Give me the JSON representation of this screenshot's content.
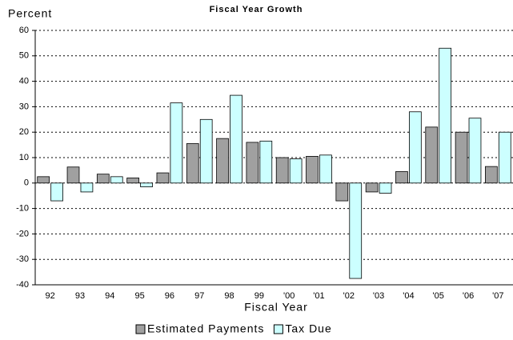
{
  "chart_data": {
    "type": "bar",
    "title": "Fiscal Year Growth",
    "y_label": "Percent",
    "x_label": "Fiscal Year",
    "categories": [
      "92",
      "93",
      "94",
      "95",
      "96",
      "97",
      "98",
      "99",
      "'00",
      "'01",
      "'02",
      "'03",
      "'04",
      "'05",
      "'06",
      "'07"
    ],
    "series": [
      {
        "name": "Estimated Payments",
        "color": "#a0a0a0",
        "values": [
          2.5,
          6.3,
          3.5,
          2,
          4,
          15.5,
          17.5,
          16,
          10,
          10.5,
          -7,
          -3.5,
          4.5,
          22,
          20,
          6.5
        ]
      },
      {
        "name": "Tax Due",
        "color": "#ccffff",
        "values": [
          -7,
          -3.5,
          2.5,
          -1.5,
          31.5,
          25,
          34.5,
          16.5,
          9.5,
          11,
          -37.5,
          -4,
          28,
          53,
          25.5,
          20
        ]
      }
    ],
    "ylim": [
      -40,
      60
    ],
    "yticks": [
      -40,
      -30,
      -20,
      -10,
      0,
      10,
      20,
      30,
      40,
      50,
      60
    ],
    "grid": true
  }
}
